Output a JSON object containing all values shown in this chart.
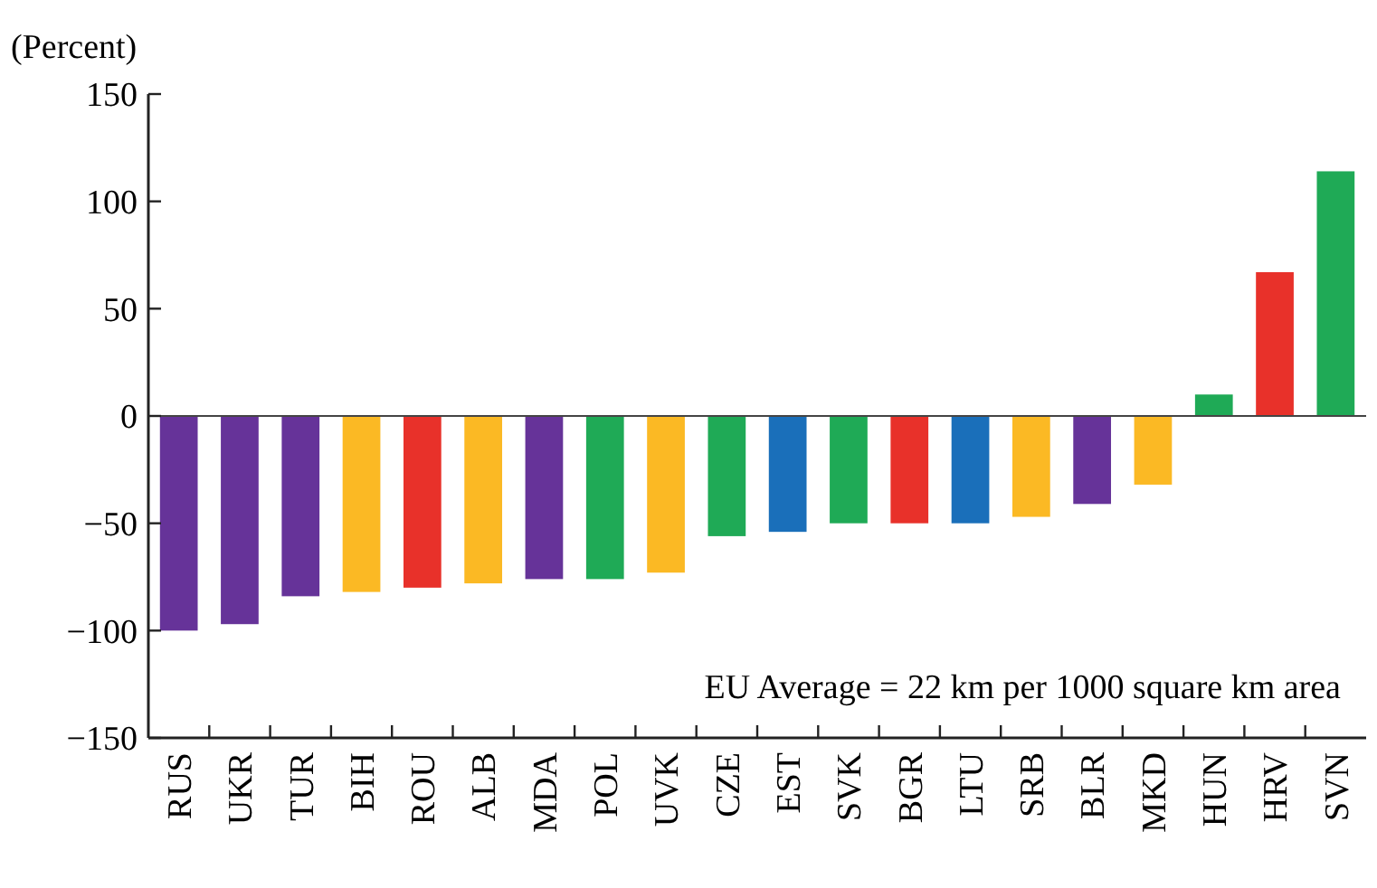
{
  "chart_data": {
    "type": "bar",
    "ylabel": "(Percent)",
    "categories": [
      "RUS",
      "UKR",
      "TUR",
      "BIH",
      "ROU",
      "ALB",
      "MDA",
      "POL",
      "UVK",
      "CZE",
      "EST",
      "SVK",
      "BGR",
      "LTU",
      "SRB",
      "BLR",
      "MKD",
      "HUN",
      "HRV",
      "SVN"
    ],
    "values": [
      -100,
      -97,
      -84,
      -82,
      -80,
      -78,
      -76,
      -76,
      -73,
      -56,
      -54,
      -50,
      -50,
      -50,
      -47,
      -41,
      -32,
      10,
      67,
      114
    ],
    "colors": [
      "#663399",
      "#663399",
      "#663399",
      "#fbb924",
      "#e8312a",
      "#fbb924",
      "#663399",
      "#1faa56",
      "#fbb924",
      "#1faa56",
      "#1a6fba",
      "#1faa56",
      "#e8312a",
      "#1a6fba",
      "#fbb924",
      "#663399",
      "#fbb924",
      "#1faa56",
      "#e8312a",
      "#1faa56"
    ],
    "ylim": [
      -150,
      150
    ],
    "yticks": [
      -150,
      -100,
      -50,
      0,
      50,
      100,
      150
    ],
    "annotations": [
      "EU Average = 22 km per 1000 square km area"
    ]
  }
}
